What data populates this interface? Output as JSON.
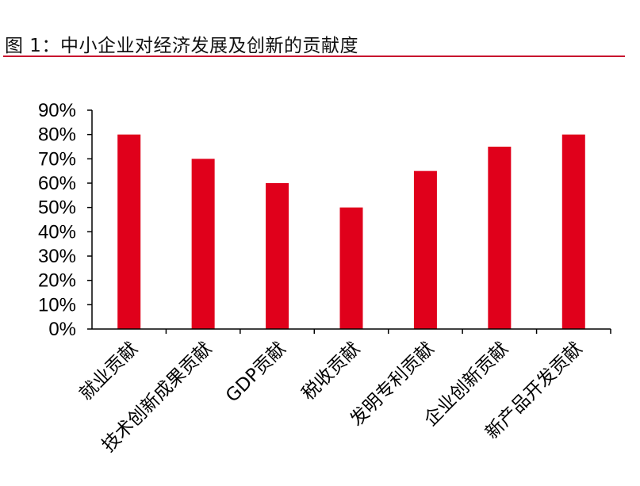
{
  "figure": {
    "title": "图 1：中小企业对经济发展及创新的贡献度"
  },
  "colors": {
    "bar": "#e0001b",
    "axis": "#000000",
    "title_rule": "#c8102e"
  },
  "chart_data": {
    "type": "bar",
    "title": "",
    "xlabel": "",
    "ylabel": "",
    "categories": [
      "就业贡献",
      "技术创新成果贡献",
      "GDP贡献",
      "税收贡献",
      "发明专利贡献",
      "企业创新贡献",
      "新产品开发贡献"
    ],
    "values": [
      80,
      70,
      60,
      50,
      65,
      75,
      80
    ],
    "ylim": [
      0,
      90
    ],
    "y_ticks": [
      0,
      10,
      20,
      30,
      40,
      50,
      60,
      70,
      80,
      90
    ],
    "y_tick_labels": [
      "0%",
      "10%",
      "20%",
      "30%",
      "40%",
      "50%",
      "60%",
      "70%",
      "80%",
      "90%"
    ],
    "grid": false,
    "legend": "none"
  }
}
